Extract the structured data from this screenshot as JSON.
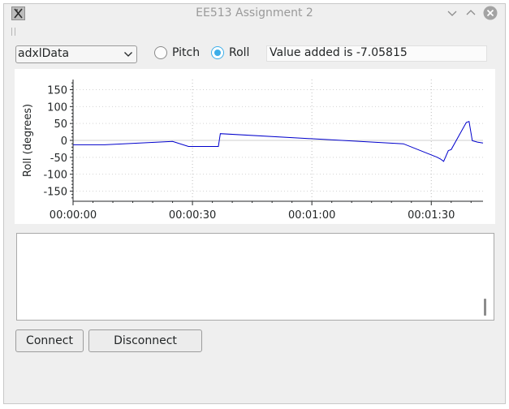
{
  "window": {
    "title": "EE513 Assignment 2"
  },
  "combo": {
    "value": "adxlData"
  },
  "radios": {
    "pitch_label": "Pitch",
    "roll_label": "Roll",
    "selected": "roll"
  },
  "status": {
    "text": "Value added is -7.05815"
  },
  "buttons": {
    "connect": "Connect",
    "disconnect": "Disconnect"
  },
  "colors": {
    "accent": "#3daee9",
    "series": "#0000cc"
  },
  "icons": {
    "app": "app-x-icon",
    "minimize": "chevron-down-icon",
    "maximize": "chevron-up-icon",
    "close": "close-icon"
  },
  "chart_data": {
    "type": "line",
    "title": "",
    "xlabel": "",
    "ylabel": "Roll (degrees)",
    "xlim_seconds": [
      0,
      103
    ],
    "ylim": [
      -180,
      180
    ],
    "yticks": [
      150,
      100,
      50,
      0,
      -50,
      -100,
      -150
    ],
    "xticks": [
      {
        "t": 0,
        "label": "00:00:00"
      },
      {
        "t": 30,
        "label": "00:00:30"
      },
      {
        "t": 60,
        "label": "00:01:00"
      },
      {
        "t": 90,
        "label": "00:01:30"
      }
    ],
    "grid": "dotted",
    "series": [
      {
        "x": [
          0,
          8,
          25,
          29,
          36.5,
          37,
          83,
          91.5,
          92.3,
          93.1,
          94.3,
          95,
          98.8,
          99.5,
          100.3,
          101.6,
          103
        ],
        "y": [
          -13,
          -13,
          -3,
          -18,
          -18,
          20,
          -10,
          -50,
          -55,
          -62,
          -30,
          -27,
          53,
          56,
          -1,
          -5,
          -8
        ]
      }
    ]
  }
}
